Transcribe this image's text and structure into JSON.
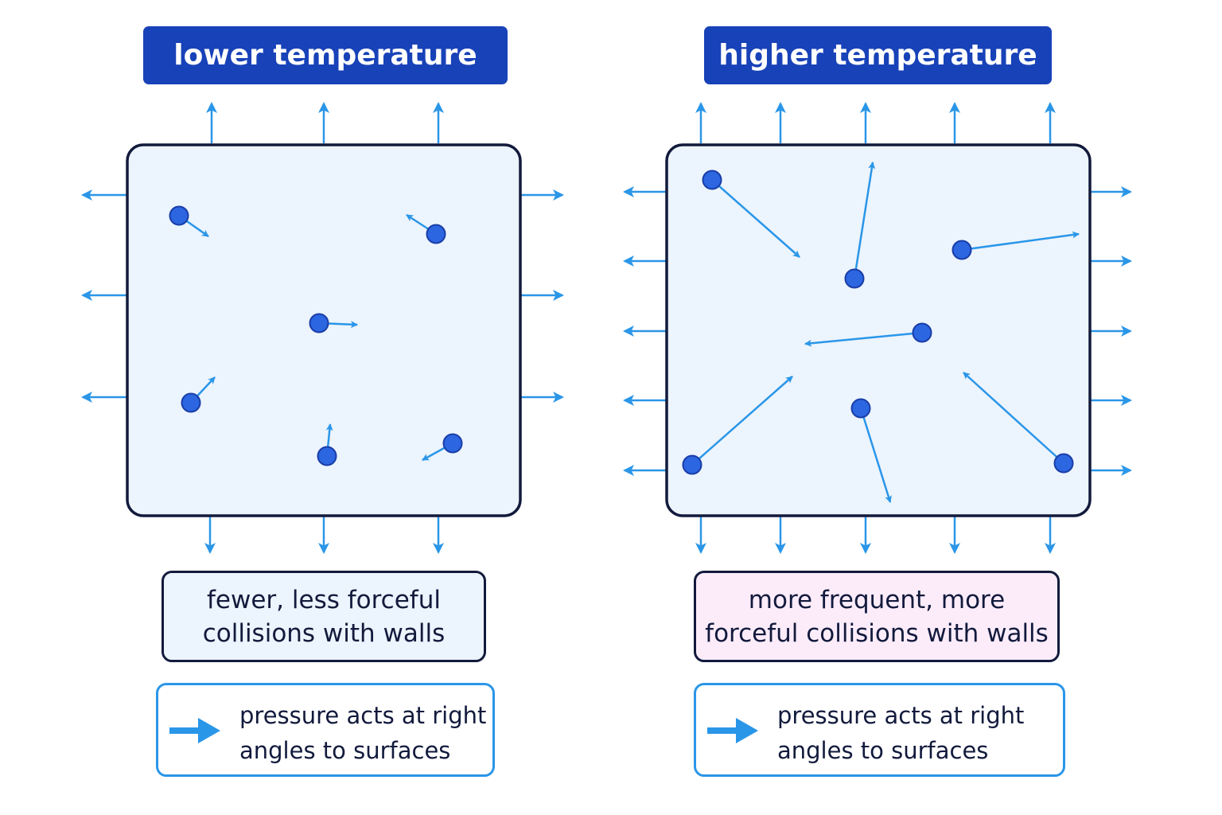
{
  "panels": [
    {
      "title": "lower temperature",
      "caption_lines": [
        "fewer, less forceful",
        "collisions with walls"
      ],
      "legend_lines": [
        "pressure acts at right",
        "angles to surfaces"
      ]
    },
    {
      "title": "higher temperature",
      "caption_lines": [
        "more frequent, more",
        "forceful collisions with walls"
      ],
      "legend_lines": [
        "pressure acts at right",
        "angles to surfaces"
      ]
    }
  ],
  "colors": {
    "header_bg": "#1842b8",
    "header_text": "#ffffff",
    "container_fill": "#ecf4fd",
    "container_border": "#121a3c",
    "particle": "#2c66e0",
    "particle_outline": "#1a3ea8",
    "arrow": "#2a96e8",
    "caption_low_bg": "#ecf4fd",
    "caption_high_bg": "#fcecfa",
    "legend_border": "#2a96e8"
  },
  "icons": {
    "particle": "particle-circle",
    "velocity": "velocity-arrow",
    "pressure": "pressure-arrow"
  }
}
